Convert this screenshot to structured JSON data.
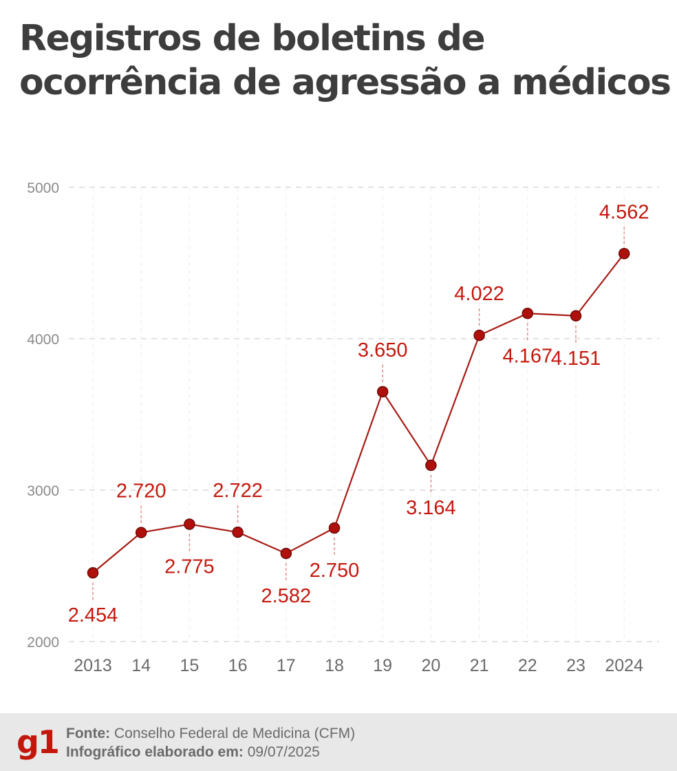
{
  "title": {
    "line1": "Registros de boletins de",
    "line2": "ocorrência de agressão a médicos"
  },
  "colors": {
    "accent": "#c4170c",
    "line": "#a61b14",
    "marker": "#b0100c",
    "axis_text": "#8a8a8a",
    "grid": "#d9d9d9"
  },
  "chart_data": {
    "type": "line",
    "title": "Registros de boletins de ocorrência de agressão a médicos",
    "xlabel": "",
    "ylabel": "",
    "ylim": [
      2000,
      5000
    ],
    "yticks": [
      "5000",
      "4000",
      "3000",
      "2000"
    ],
    "ytick_values": [
      5000,
      4000,
      3000,
      2000
    ],
    "categories": [
      "2013",
      "14",
      "15",
      "16",
      "17",
      "18",
      "19",
      "20",
      "21",
      "22",
      "23",
      "2024"
    ],
    "values": [
      2454,
      2720,
      2775,
      2722,
      2582,
      2750,
      3650,
      3164,
      4022,
      4167,
      4151,
      4562
    ],
    "data_labels": [
      "2.454",
      "2.720",
      "2.775",
      "2.722",
      "2.582",
      "2.750",
      "3.650",
      "3.164",
      "4.022",
      "4.167",
      "4.151",
      "4.562"
    ],
    "label_positions": [
      "below",
      "above",
      "below",
      "above",
      "below",
      "below",
      "above",
      "below",
      "above",
      "below",
      "below",
      "above"
    ],
    "grid": true,
    "legend": "none"
  },
  "footer": {
    "logo": "g1",
    "source_label": "Fonte:",
    "source_value": " Conselho Federal de Medicina (CFM)",
    "made_label": "Infográfico elaborado em:",
    "made_value": " 09/07/2025"
  }
}
